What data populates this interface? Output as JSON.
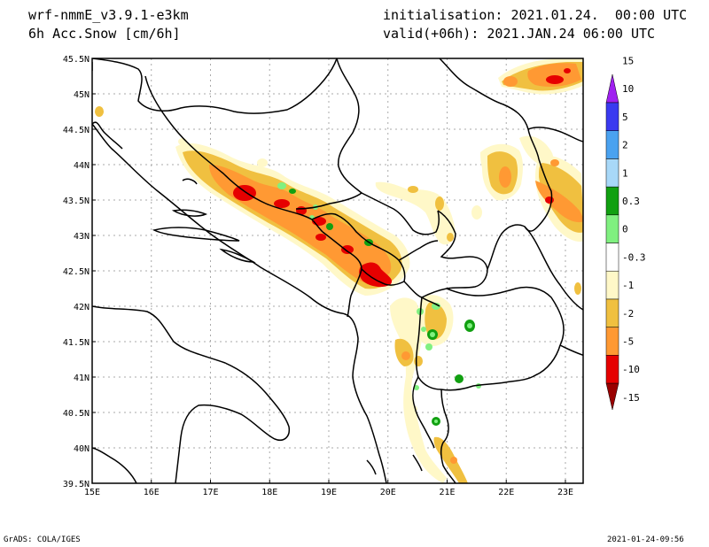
{
  "header": {
    "model": "wrf-nmmE_v3.9.1-e3km",
    "field": "6h Acc.Snow [cm/6h]",
    "init": "initialisation: 2021.01.24.  00:00 UTC",
    "valid": "valid(+06h): 2021.JAN.24 06:00 UTC"
  },
  "footer": {
    "left": "GrADS: COLA/IGES",
    "right": "2021-01-24-09:56"
  },
  "map": {
    "lon_range": [
      15,
      23.3
    ],
    "lat_range": [
      39.5,
      45.5
    ],
    "lon_ticks": [
      {
        "v": 15,
        "label": "15E"
      },
      {
        "v": 16,
        "label": "16E"
      },
      {
        "v": 17,
        "label": "17E"
      },
      {
        "v": 18,
        "label": "18E"
      },
      {
        "v": 19,
        "label": "19E"
      },
      {
        "v": 20,
        "label": "20E"
      },
      {
        "v": 21,
        "label": "21E"
      },
      {
        "v": 22,
        "label": "22E"
      },
      {
        "v": 23,
        "label": "23E"
      }
    ],
    "lat_ticks": [
      {
        "v": 39.5,
        "label": "39.5N"
      },
      {
        "v": 40,
        "label": "40N"
      },
      {
        "v": 40.5,
        "label": "40.5N"
      },
      {
        "v": 41,
        "label": "41N"
      },
      {
        "v": 41.5,
        "label": "41.5N"
      },
      {
        "v": 42,
        "label": "42N"
      },
      {
        "v": 42.5,
        "label": "42.5N"
      },
      {
        "v": 43,
        "label": "43N"
      },
      {
        "v": 43.5,
        "label": "43.5N"
      },
      {
        "v": 44,
        "label": "44N"
      },
      {
        "v": 44.5,
        "label": "44.5N"
      },
      {
        "v": 45,
        "label": "45N"
      },
      {
        "v": 45.5,
        "label": "45.5N"
      }
    ]
  },
  "colorbar": {
    "colors": [
      "#990000",
      "#e60000",
      "#ff9933",
      "#f0c040",
      "#fff8c8",
      "#ffffff",
      "#80f080",
      "#11a011",
      "#a8d8f8",
      "#4aa2f0",
      "#3a3af0",
      "#a020f0"
    ],
    "labels": [
      "-15",
      "-10",
      "-5",
      "-2",
      "-1",
      "-0.3",
      "0",
      "0.3",
      "1",
      "2",
      "5",
      "10",
      "15"
    ]
  },
  "legend_colors": {
    "light_yellow": "#fff8c8",
    "yellow": "#f0c040",
    "orange": "#ff9933",
    "red": "#e60000",
    "light_green": "#80f080",
    "green": "#11a011"
  }
}
